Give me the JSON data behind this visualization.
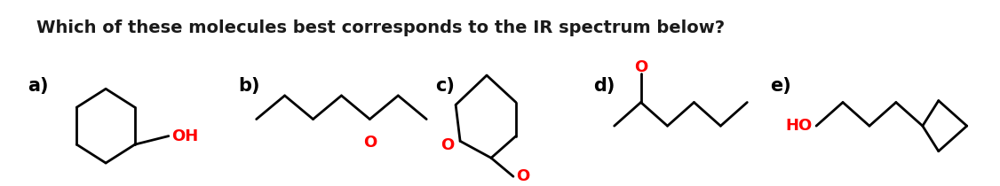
{
  "title": "Which of these molecules best corresponds to the IR spectrum below?",
  "title_fontsize": 14,
  "title_fontweight": "bold",
  "background_color": "#ffffff",
  "label_color": "#1a1a1a",
  "red_color": "#ff0000",
  "black_color": "#000000",
  "labels": [
    "a)",
    "b)",
    "c)",
    "d)",
    "e)"
  ],
  "label_fontsize": 15,
  "label_fontweight": "bold"
}
